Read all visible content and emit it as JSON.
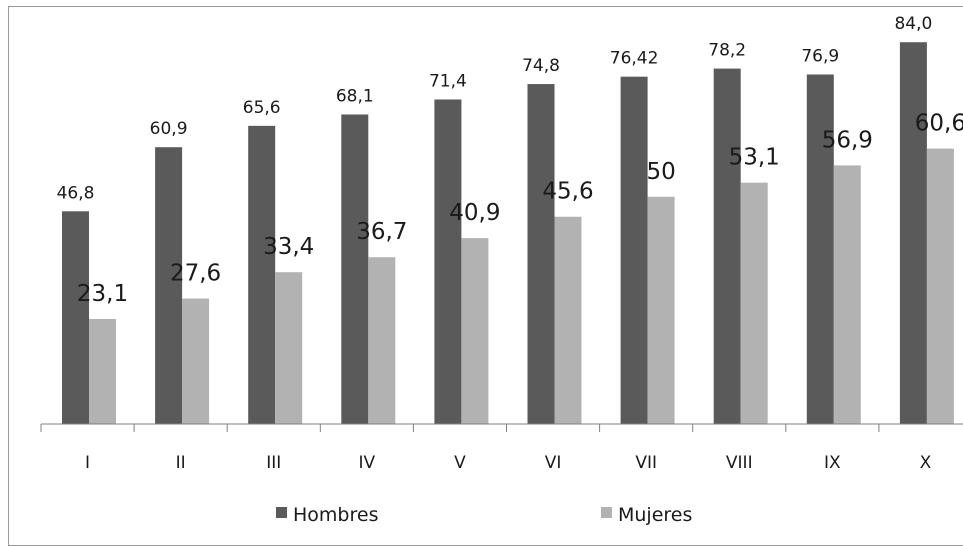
{
  "chart_data": {
    "type": "bar",
    "categories": [
      "I",
      "II",
      "III",
      "IV",
      "V",
      "VI",
      "VII",
      "VIII",
      "IX",
      "X"
    ],
    "series": [
      {
        "name": "Hombres",
        "color": "#5a5a5a",
        "values": [
          46.8,
          60.9,
          65.6,
          68.1,
          71.4,
          74.8,
          76.42,
          78.2,
          76.9,
          84.0
        ],
        "labels": [
          "46,8",
          "60,9",
          "65,6",
          "68,1",
          "71,4",
          "74,8",
          "76,42",
          "78,2",
          "76,9",
          "84,0"
        ]
      },
      {
        "name": "Mujeres",
        "color": "#b2b2b2",
        "values": [
          23.1,
          27.6,
          33.4,
          36.7,
          40.9,
          45.6,
          50,
          53.1,
          56.9,
          60.6
        ],
        "labels": [
          "23,1",
          "27,6",
          "33,4",
          "36,7",
          "40,9",
          "45,6",
          "50",
          "53,1",
          "56,9",
          "60,6"
        ]
      }
    ],
    "ylim": [
      0,
      90
    ],
    "grid": false,
    "legend_position": "bottom",
    "title": "",
    "xlabel": "",
    "ylabel": ""
  }
}
